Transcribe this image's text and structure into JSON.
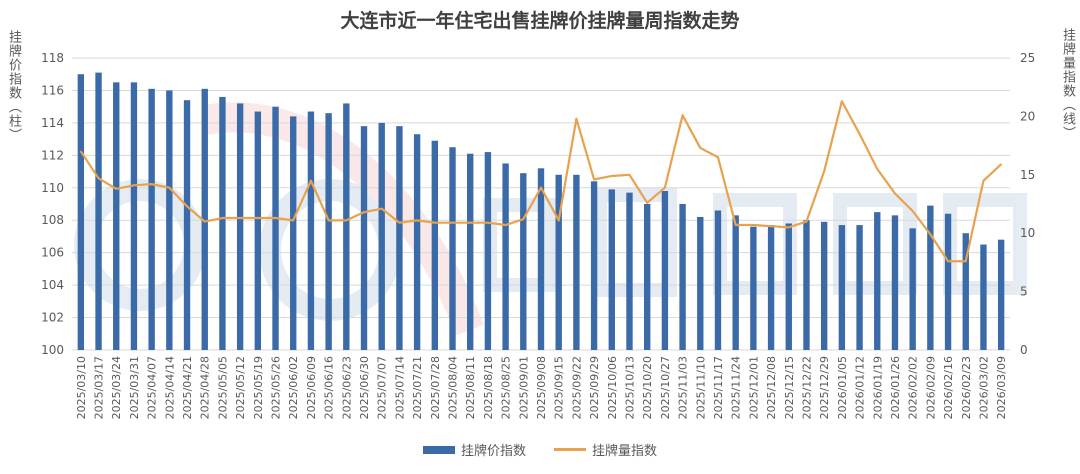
{
  "chart_data": {
    "type": "bar+line",
    "title": "大连市近一年住宅出售挂牌价挂牌量周指数走势",
    "ylabel_left": "挂牌价指数（柱）",
    "ylabel_right": "挂牌量指数（线）",
    "ylim_left": [
      100,
      118
    ],
    "yticks_left": [
      100,
      102,
      104,
      106,
      108,
      110,
      112,
      114,
      116,
      118
    ],
    "ylim_right": [
      0,
      25
    ],
    "yticks_right": [
      0,
      5,
      10,
      15,
      20,
      25
    ],
    "grid": true,
    "legend_position": "bottom",
    "colors": {
      "bar": "#3a6aa8",
      "line": "#e8a24f",
      "grid": "#d9d9d9",
      "axis_text": "#595959"
    },
    "categories": [
      "2025/03/10",
      "2025/03/17",
      "2025/03/24",
      "2025/03/31",
      "2025/04/07",
      "2025/04/14",
      "2025/04/21",
      "2025/04/28",
      "2025/05/05",
      "2025/05/12",
      "2025/05/19",
      "2025/05/26",
      "2025/06/02",
      "2025/06/09",
      "2025/06/16",
      "2025/06/23",
      "2025/06/30",
      "2025/07/07",
      "2025/07/14",
      "2025/07/21",
      "2025/07/28",
      "2025/08/04",
      "2025/08/11",
      "2025/08/18",
      "2025/08/25",
      "2025/09/01",
      "2025/09/08",
      "2025/09/15",
      "2025/09/22",
      "2025/09/29",
      "2025/10/06",
      "2025/10/13",
      "2025/10/20",
      "2025/10/27",
      "2025/11/03",
      "2025/11/10",
      "2025/11/17",
      "2025/11/24",
      "2025/12/01",
      "2025/12/08",
      "2025/12/15",
      "2025/12/22",
      "2025/12/29",
      "2026/01/05",
      "2026/01/12",
      "2026/01/19",
      "2026/01/26",
      "2026/02/02",
      "2026/02/09",
      "2026/02/16",
      "2026/02/23",
      "2026/03/02",
      "2026/03/09"
    ],
    "series": [
      {
        "name": "挂牌价指数",
        "type": "bar",
        "axis": "left",
        "values": [
          117.0,
          117.1,
          116.5,
          116.5,
          116.1,
          116.0,
          115.4,
          116.1,
          115.6,
          115.2,
          114.7,
          115.0,
          114.4,
          114.7,
          114.6,
          115.2,
          113.8,
          114.0,
          113.8,
          113.3,
          112.9,
          112.5,
          112.1,
          112.2,
          111.5,
          110.9,
          111.2,
          110.8,
          110.8,
          110.4,
          109.9,
          109.7,
          109.0,
          109.8,
          109.0,
          108.2,
          108.6,
          108.3,
          107.6,
          107.7,
          107.8,
          108.0,
          107.9,
          107.7,
          107.7,
          108.5,
          108.3,
          107.5,
          108.9,
          108.4,
          107.2,
          106.5,
          106.8
        ]
      },
      {
        "name": "挂牌量指数",
        "type": "line",
        "axis": "right",
        "values": [
          17.0,
          14.7,
          13.8,
          14.1,
          14.2,
          13.9,
          12.3,
          11.0,
          11.3,
          11.3,
          11.3,
          11.3,
          11.1,
          14.5,
          11.1,
          11.1,
          11.8,
          12.1,
          10.9,
          11.1,
          10.9,
          10.9,
          10.9,
          10.9,
          10.7,
          11.2,
          13.9,
          11.1,
          19.8,
          14.6,
          14.9,
          15.0,
          12.6,
          13.9,
          20.1,
          17.3,
          16.5,
          10.7,
          10.7,
          10.6,
          10.5,
          11.0,
          15.3,
          21.3,
          18.5,
          15.5,
          13.4,
          11.9,
          9.9,
          7.6,
          7.6,
          14.5,
          15.9
        ]
      }
    ]
  },
  "legend": {
    "bar_label": "挂牌价指数",
    "line_label": "挂牌量指数"
  }
}
